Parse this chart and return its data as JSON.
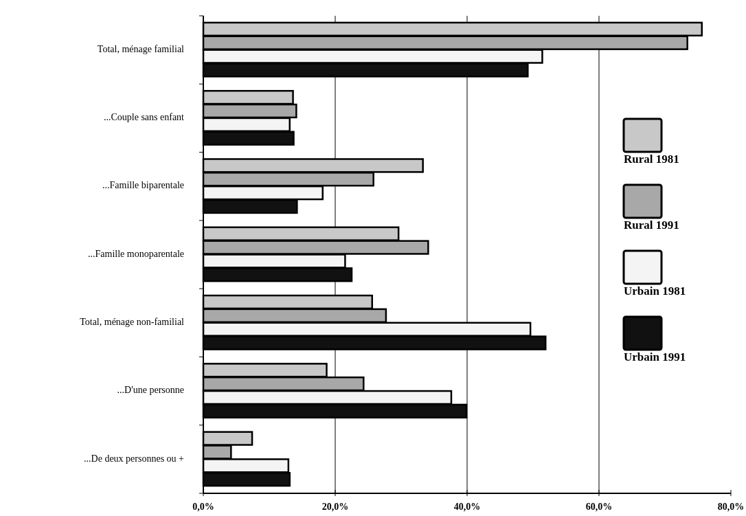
{
  "chart_data": {
    "type": "bar",
    "orientation": "horizontal",
    "categories": [
      "Total, ménage familial",
      "...Couple sans enfant",
      "...Famille biparentale",
      "...Famille monoparentale",
      "Total, ménage non-familial",
      "...D'une personne",
      "...De deux personnes ou +"
    ],
    "series": [
      {
        "name": "Rural 1981",
        "color": "#c8c8c8",
        "values": [
          75.6,
          13.6,
          33.3,
          29.6,
          25.6,
          18.7,
          7.4
        ]
      },
      {
        "name": "Rural 1991",
        "color": "#a8a8a8",
        "values": [
          73.4,
          14.1,
          25.8,
          34.1,
          27.7,
          24.3,
          4.2
        ]
      },
      {
        "name": "Urbain 1981",
        "color": "#f4f4f4",
        "values": [
          51.4,
          13.1,
          18.1,
          21.5,
          49.6,
          37.6,
          12.9
        ]
      },
      {
        "name": "Urbain 1991",
        "color": "#111111",
        "values": [
          49.2,
          13.7,
          14.2,
          22.5,
          51.9,
          39.9,
          13.1
        ]
      }
    ],
    "xlim": [
      0,
      80
    ],
    "xticks": [
      {
        "value": 0,
        "label": "0,0%"
      },
      {
        "value": 20,
        "label": "20,0%"
      },
      {
        "value": 40,
        "label": "40,0%"
      },
      {
        "value": 60,
        "label": "60,0%"
      },
      {
        "value": 80,
        "label": "80,0%"
      }
    ],
    "grid": "x",
    "legend": "right"
  }
}
